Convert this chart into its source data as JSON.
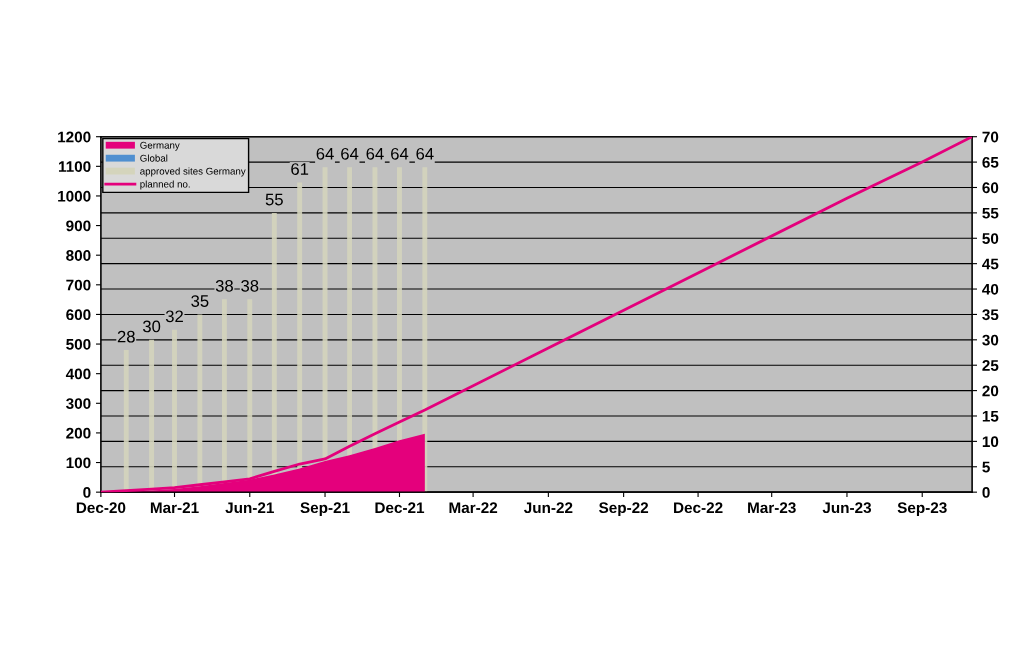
{
  "chart_data": {
    "type": "area",
    "xlim": [
      "2020-12-01",
      "2023-11-01"
    ],
    "xticks": [
      {
        "value": "2020-12-01",
        "label": "Dec-20"
      },
      {
        "value": "2021-03-01",
        "label": "Mar-21"
      },
      {
        "value": "2021-06-01",
        "label": "Jun-21"
      },
      {
        "value": "2021-09-01",
        "label": "Sep-21"
      },
      {
        "value": "2021-12-01",
        "label": "Dec-21"
      },
      {
        "value": "2022-03-01",
        "label": "Mar-22"
      },
      {
        "value": "2022-06-01",
        "label": "Jun-22"
      },
      {
        "value": "2022-09-01",
        "label": "Sep-22"
      },
      {
        "value": "2022-12-01",
        "label": "Dec-22"
      },
      {
        "value": "2023-03-01",
        "label": "Mar-23"
      },
      {
        "value": "2023-06-01",
        "label": "Jun-23"
      },
      {
        "value": "2023-09-01",
        "label": "Sep-23"
      }
    ],
    "ylim": [
      0,
      1200
    ],
    "yticks": [
      0,
      100,
      200,
      300,
      400,
      500,
      600,
      700,
      800,
      900,
      1000,
      1100,
      1200
    ],
    "y2lim": [
      0,
      70
    ],
    "y2ticks": [
      0,
      5,
      10,
      15,
      20,
      25,
      30,
      35,
      40,
      45,
      50,
      55,
      60,
      65,
      70
    ],
    "grid": "y",
    "legend": "top left",
    "series": [
      {
        "name": "Germany",
        "color": "#e4007c",
        "x": [
          "2020-12-01",
          "2021-01-01",
          "2021-02-01",
          "2021-03-01",
          "2021-04-01",
          "2021-05-01",
          "2021-06-01",
          "2021-07-01",
          "2021-08-01",
          "2021-09-01",
          "2021-10-01",
          "2021-11-01",
          "2021-12-01",
          "2022-01-01"
        ],
        "values": [
          0,
          3,
          6,
          11,
          20,
          31,
          42,
          60,
          80,
          105,
          125,
          149,
          175,
          197
        ]
      },
      {
        "name": "Global",
        "type": "area",
        "color": "#4f8fd0"
      },
      {
        "name": "approved sites Germany",
        "type": "bar",
        "axis": "y2",
        "color": "#d4d4bc",
        "data_labels": true,
        "x": [
          "2021-01-01",
          "2021-02-01",
          "2021-03-01",
          "2021-04-01",
          "2021-05-01",
          "2021-06-01",
          "2021-07-01",
          "2021-08-01",
          "2021-09-01",
          "2021-10-01",
          "2021-11-01",
          "2021-12-01",
          "2022-01-01"
        ],
        "values": [
          28,
          30,
          32,
          35,
          38,
          38,
          55,
          61,
          64,
          64,
          64,
          64,
          64
        ]
      },
      {
        "name": "planned no.",
        "type": "line",
        "color": "#e4007c",
        "x": [
          "2020-12-01",
          "2021-01-01",
          "2021-02-01",
          "2021-03-01",
          "2021-04-01",
          "2021-05-01",
          "2021-06-01",
          "2021-07-01",
          "2021-08-01",
          "2021-09-01",
          "2021-10-01",
          "2021-11-01",
          "2021-12-01",
          "2022-01-01",
          "2022-06-01",
          "2022-12-01",
          "2023-06-01",
          "2023-09-01",
          "2023-11-01"
        ],
        "values": [
          0,
          5,
          10,
          15,
          25,
          35,
          45,
          70,
          95,
          112,
          155,
          197,
          237,
          277,
          487,
          740,
          992,
          1115,
          1200
        ]
      }
    ]
  }
}
